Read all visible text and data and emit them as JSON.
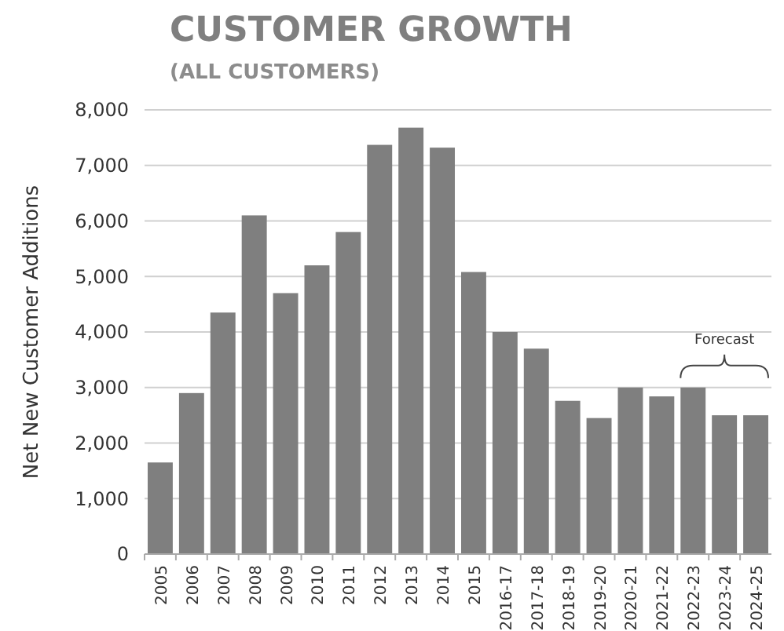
{
  "chart_data": {
    "type": "bar",
    "title": "CUSTOMER GROWTH",
    "subtitle": "(ALL CUSTOMERS)",
    "ylabel": "Net New Customer Additions",
    "categories": [
      "2005",
      "2006",
      "2007",
      "2008",
      "2009",
      "2010",
      "2011",
      "2012",
      "2013",
      "2014",
      "2015",
      "2016-17",
      "2017-18",
      "2018-19",
      "2019-20",
      "2020-21",
      "2021-22",
      "2022-23",
      "2023-24",
      "2024-25"
    ],
    "values": [
      1650,
      2900,
      4350,
      6100,
      4700,
      5200,
      5800,
      7370,
      7680,
      7320,
      5080,
      4000,
      3700,
      2760,
      2450,
      3000,
      2840,
      3000,
      2500,
      2500
    ],
    "color": "#7f7f7f",
    "ylim": [
      0,
      8000
    ],
    "yticks": [
      {
        "value": 0,
        "label": "0"
      },
      {
        "value": 1000,
        "label": "1,000"
      },
      {
        "value": 2000,
        "label": "2,000"
      },
      {
        "value": 3000,
        "label": "3,000"
      },
      {
        "value": 4000,
        "label": "4,000"
      },
      {
        "value": 5000,
        "label": "5,000"
      },
      {
        "value": 6000,
        "label": "6,000"
      },
      {
        "value": 7000,
        "label": "7,000"
      },
      {
        "value": 8000,
        "label": "8,000"
      }
    ],
    "grid": "y",
    "annotations": [
      "Forecast"
    ]
  }
}
